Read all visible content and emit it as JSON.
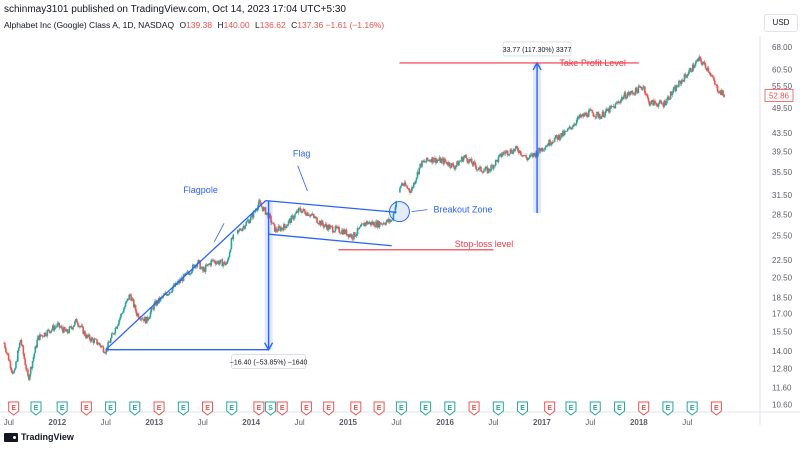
{
  "header": {
    "publish_line": "schinmay3101 published on TradingView.com, Oct 14, 2023 17:04 UTC+5:30",
    "symbol_name": "Alphabet Inc (Google) Class A, 1D, NASDAQ",
    "ohlc": [
      {
        "label": "O",
        "value": "139.38"
      },
      {
        "label": "H",
        "value": "140.00"
      },
      {
        "label": "L",
        "value": "136.62"
      },
      {
        "label": "C",
        "value": "137.36"
      }
    ],
    "change": "−1.61 (−1.16%)",
    "currency": "USD"
  },
  "footer": {
    "brand": "TradingView"
  },
  "colors": {
    "up": "#26a69a",
    "down": "#ef5350",
    "drawing": "#2962ff",
    "level": "#f23645",
    "text": "#131722",
    "axis_text": "#5d606b"
  },
  "chart_data": {
    "type": "candlestick",
    "title": "Alphabet Inc (Google) Class A, 1D, NASDAQ",
    "y_scale": "log",
    "ylim": [
      10.2,
      72.0
    ],
    "xlim": [
      2011.45,
      2019.25
    ],
    "y_ticks": [
      "68.00",
      "60.50",
      "55.50",
      "49.50",
      "43.50",
      "39.50",
      "35.50",
      "31.50",
      "28.50",
      "25.50",
      "22.50",
      "20.50",
      "18.50",
      "17.00",
      "15.50",
      "14.00",
      "12.80",
      "11.60",
      "10.60"
    ],
    "x_ticks": [
      {
        "label": "Jul",
        "x": 2011.5
      },
      {
        "label": "2012",
        "x": 2012.0
      },
      {
        "label": "Jul",
        "x": 2012.5
      },
      {
        "label": "2013",
        "x": 2013.0
      },
      {
        "label": "Jul",
        "x": 2013.5
      },
      {
        "label": "2014",
        "x": 2014.0
      },
      {
        "label": "Jul",
        "x": 2014.5
      },
      {
        "label": "2015",
        "x": 2015.0
      },
      {
        "label": "Jul",
        "x": 2015.5
      },
      {
        "label": "2016",
        "x": 2016.0
      },
      {
        "label": "Jul",
        "x": 2016.5
      },
      {
        "label": "2017",
        "x": 2017.0
      },
      {
        "label": "Jul",
        "x": 2017.5
      },
      {
        "label": "2018",
        "x": 2018.0
      },
      {
        "label": "Jul",
        "x": 2018.5
      }
    ],
    "last_price": "52.86",
    "anchors": [
      [
        2011.45,
        14.6
      ],
      [
        2011.55,
        12.3
      ],
      [
        2011.62,
        14.9
      ],
      [
        2011.7,
        12.1
      ],
      [
        2011.8,
        15.0
      ],
      [
        2012.0,
        16.0
      ],
      [
        2012.1,
        15.4
      ],
      [
        2012.2,
        16.4
      ],
      [
        2012.3,
        15.1
      ],
      [
        2012.42,
        14.6
      ],
      [
        2012.5,
        14.0
      ],
      [
        2012.6,
        15.8
      ],
      [
        2012.75,
        18.8
      ],
      [
        2012.82,
        17.0
      ],
      [
        2012.92,
        16.4
      ],
      [
        2013.0,
        17.8
      ],
      [
        2013.2,
        19.5
      ],
      [
        2013.35,
        21.0
      ],
      [
        2013.45,
        22.3
      ],
      [
        2013.5,
        21.2
      ],
      [
        2013.6,
        22.4
      ],
      [
        2013.75,
        22.0
      ],
      [
        2013.8,
        25.0
      ],
      [
        2013.9,
        26.5
      ],
      [
        2014.0,
        28.0
      ],
      [
        2014.08,
        30.2
      ],
      [
        2014.18,
        28.3
      ],
      [
        2014.25,
        26.2
      ],
      [
        2014.35,
        26.8
      ],
      [
        2014.5,
        29.2
      ],
      [
        2014.6,
        28.6
      ],
      [
        2014.75,
        26.9
      ],
      [
        2014.85,
        26.4
      ],
      [
        2014.95,
        26.1
      ],
      [
        2015.05,
        25.4
      ],
      [
        2015.18,
        27.3
      ],
      [
        2015.3,
        27.1
      ],
      [
        2015.45,
        27.6
      ],
      [
        2015.55,
        33.5
      ],
      [
        2015.65,
        32.2
      ],
      [
        2015.75,
        37.0
      ],
      [
        2015.85,
        38.0
      ],
      [
        2016.0,
        37.5
      ],
      [
        2016.1,
        36.5
      ],
      [
        2016.2,
        38.5
      ],
      [
        2016.35,
        36.0
      ],
      [
        2016.45,
        35.8
      ],
      [
        2016.6,
        39.2
      ],
      [
        2016.75,
        40.0
      ],
      [
        2016.85,
        38.0
      ],
      [
        2016.95,
        39.3
      ],
      [
        2017.1,
        41.8
      ],
      [
        2017.25,
        43.6
      ],
      [
        2017.38,
        47.0
      ],
      [
        2017.5,
        48.4
      ],
      [
        2017.6,
        47.5
      ],
      [
        2017.75,
        50.0
      ],
      [
        2017.85,
        52.8
      ],
      [
        2017.95,
        53.8
      ],
      [
        2018.05,
        55.5
      ],
      [
        2018.1,
        51.0
      ],
      [
        2018.25,
        50.5
      ],
      [
        2018.4,
        55.6
      ],
      [
        2018.55,
        61.0
      ],
      [
        2018.62,
        63.8
      ],
      [
        2018.72,
        60.5
      ],
      [
        2018.8,
        55.0
      ],
      [
        2018.88,
        52.86
      ]
    ],
    "series_gaps": [
      [
        2013.82,
        2013.86
      ],
      [
        2015.5,
        2015.53
      ]
    ],
    "drawings": {
      "flagpole": {
        "label": "Flagpole",
        "from": [
          2012.5,
          14.1
        ],
        "to": [
          2014.15,
          30.6
        ]
      },
      "flag_upper": {
        "from": [
          2014.15,
          30.6
        ],
        "to": [
          2015.5,
          28.8
        ]
      },
      "flag_lower": {
        "from": [
          2014.18,
          25.7
        ],
        "to": [
          2015.45,
          24.2
        ]
      },
      "flag_label": "Flag",
      "breakout_zone": {
        "label": "Breakout Zone",
        "center": [
          2015.53,
          28.9
        ]
      },
      "stop_loss": {
        "label": "Stop-loss level",
        "value": 23.7,
        "from": 2014.9,
        "to": 2016.5
      },
      "take_profit": {
        "label": "Take Profit Level",
        "value": 62.6,
        "from": 2015.53,
        "to": 2018.0
      },
      "measure_down": {
        "label": "−16.40 (−53.85%) −1640",
        "x": 2014.18,
        "top": 30.6,
        "bottom": 14.1
      },
      "measure_up": {
        "label": "33.77 (117.30%) 3377",
        "x": 2016.95,
        "top": 62.6,
        "bottom": 28.7
      }
    },
    "events": [
      {
        "type": "E",
        "x": 2011.55,
        "color": "red"
      },
      {
        "type": "E",
        "x": 2011.78,
        "color": "green"
      },
      {
        "type": "E",
        "x": 2012.05,
        "color": "green"
      },
      {
        "type": "E",
        "x": 2012.3,
        "color": "red"
      },
      {
        "type": "E",
        "x": 2012.55,
        "color": "green"
      },
      {
        "type": "E",
        "x": 2012.8,
        "color": "green"
      },
      {
        "type": "E",
        "x": 2013.05,
        "color": "red"
      },
      {
        "type": "E",
        "x": 2013.3,
        "color": "green"
      },
      {
        "type": "E",
        "x": 2013.55,
        "color": "red"
      },
      {
        "type": "E",
        "x": 2013.8,
        "color": "green"
      },
      {
        "type": "E",
        "x": 2014.08,
        "color": "red"
      },
      {
        "type": "S",
        "x": 2014.2,
        "color": "green"
      },
      {
        "type": "E",
        "x": 2014.32,
        "color": "red"
      },
      {
        "type": "E",
        "x": 2014.57,
        "color": "red"
      },
      {
        "type": "E",
        "x": 2014.8,
        "color": "red"
      },
      {
        "type": "E",
        "x": 2015.08,
        "color": "red"
      },
      {
        "type": "E",
        "x": 2015.32,
        "color": "red"
      },
      {
        "type": "E",
        "x": 2015.55,
        "color": "green"
      },
      {
        "type": "E",
        "x": 2015.8,
        "color": "green"
      },
      {
        "type": "E",
        "x": 2016.05,
        "color": "green"
      },
      {
        "type": "E",
        "x": 2016.3,
        "color": "red"
      },
      {
        "type": "E",
        "x": 2016.55,
        "color": "green"
      },
      {
        "type": "E",
        "x": 2016.8,
        "color": "green"
      },
      {
        "type": "E",
        "x": 2017.08,
        "color": "red"
      },
      {
        "type": "E",
        "x": 2017.3,
        "color": "green"
      },
      {
        "type": "E",
        "x": 2017.55,
        "color": "green"
      },
      {
        "type": "E",
        "x": 2017.8,
        "color": "green"
      },
      {
        "type": "E",
        "x": 2018.05,
        "color": "red"
      },
      {
        "type": "E",
        "x": 2018.3,
        "color": "green"
      },
      {
        "type": "E",
        "x": 2018.55,
        "color": "green"
      },
      {
        "type": "E",
        "x": 2018.8,
        "color": "red"
      }
    ]
  }
}
